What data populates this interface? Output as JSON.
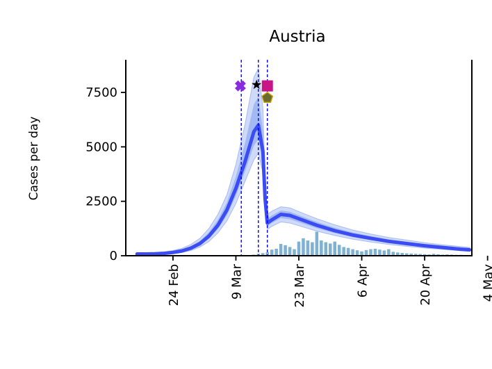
{
  "chart_data": {
    "type": "line",
    "title": "Austria",
    "ylabel": "Cases per day",
    "xlabel": "",
    "ylim": [
      0,
      9000
    ],
    "xlim": [
      -10.5,
      66.5
    ],
    "yticks": [
      0,
      2500,
      5000,
      7500
    ],
    "ytick_labels": [
      "0",
      "2500",
      "5000",
      "7500"
    ],
    "xticks": [
      0,
      14,
      28,
      42,
      56,
      70
    ],
    "xtick_labels": [
      "24 Feb",
      "9 Mar",
      "23 Mar",
      "6 Apr",
      "20 Apr",
      "4 May"
    ],
    "colors": {
      "line": "#3b4cf2",
      "band_inner": "#7f9ff0",
      "band_outer": "#c7d4f7",
      "bars": "#7fb1d3",
      "vlines": "#0000ff"
    },
    "event_lines_x": [
      15.2,
      19,
      21
    ],
    "event_markers": [
      {
        "x": 15,
        "y": 7800,
        "color": "#8a2be2",
        "shape": "cross"
      },
      {
        "x": 18.6,
        "y": 7850,
        "color": "#000000",
        "shape": "star"
      },
      {
        "x": 21,
        "y": 7800,
        "color": "#c71585",
        "shape": "square"
      },
      {
        "x": 21,
        "y": 7250,
        "color": "#6b6b2e",
        "shape": "pentagon"
      }
    ],
    "bars": {
      "x": [
        18,
        19,
        20,
        21,
        22,
        23,
        24,
        25,
        26,
        27,
        28,
        29,
        30,
        31,
        32,
        33,
        34,
        35,
        36,
        37,
        38,
        39,
        40,
        41,
        42,
        43,
        44,
        45,
        46,
        47,
        48,
        49,
        50,
        51,
        52,
        53,
        54,
        55,
        56,
        57,
        58,
        59,
        60,
        61,
        62,
        63,
        64,
        65
      ],
      "values": [
        50,
        90,
        120,
        160,
        280,
        320,
        540,
        480,
        400,
        300,
        650,
        800,
        700,
        620,
        1100,
        700,
        620,
        560,
        650,
        500,
        400,
        360,
        300,
        250,
        200,
        260,
        300,
        320,
        280,
        240,
        300,
        180,
        150,
        130,
        110,
        100,
        90,
        80,
        70,
        60,
        90,
        70,
        50,
        60,
        50,
        40,
        40,
        30
      ]
    },
    "model_line": {
      "x": [
        -8,
        -6,
        -4,
        -2,
        0,
        2,
        4,
        6,
        8,
        10,
        12,
        14,
        16,
        18,
        19,
        20,
        20.5,
        21,
        22,
        24,
        26,
        28,
        32,
        36,
        40,
        44,
        48,
        52,
        56,
        60,
        64,
        66
      ],
      "y": [
        80,
        80,
        90,
        110,
        150,
        220,
        350,
        560,
        900,
        1400,
        2100,
        3100,
        4300,
        5700,
        6000,
        4800,
        2600,
        1500,
        1650,
        1900,
        1850,
        1700,
        1400,
        1150,
        950,
        800,
        660,
        560,
        460,
        380,
        300,
        270
      ],
      "lower": [
        50,
        55,
        60,
        75,
        100,
        150,
        240,
        400,
        650,
        1050,
        1600,
        2400,
        3400,
        4400,
        4700,
        3800,
        2000,
        1200,
        1350,
        1550,
        1500,
        1380,
        1130,
        930,
        760,
        630,
        520,
        430,
        350,
        290,
        230,
        200
      ],
      "upper": [
        140,
        140,
        150,
        180,
        240,
        340,
        520,
        800,
        1250,
        1900,
        2800,
        4200,
        6000,
        8200,
        8600,
        6800,
        3500,
        1900,
        2050,
        2250,
        2200,
        2030,
        1700,
        1420,
        1180,
        1000,
        840,
        720,
        600,
        500,
        420,
        380
      ]
    }
  }
}
